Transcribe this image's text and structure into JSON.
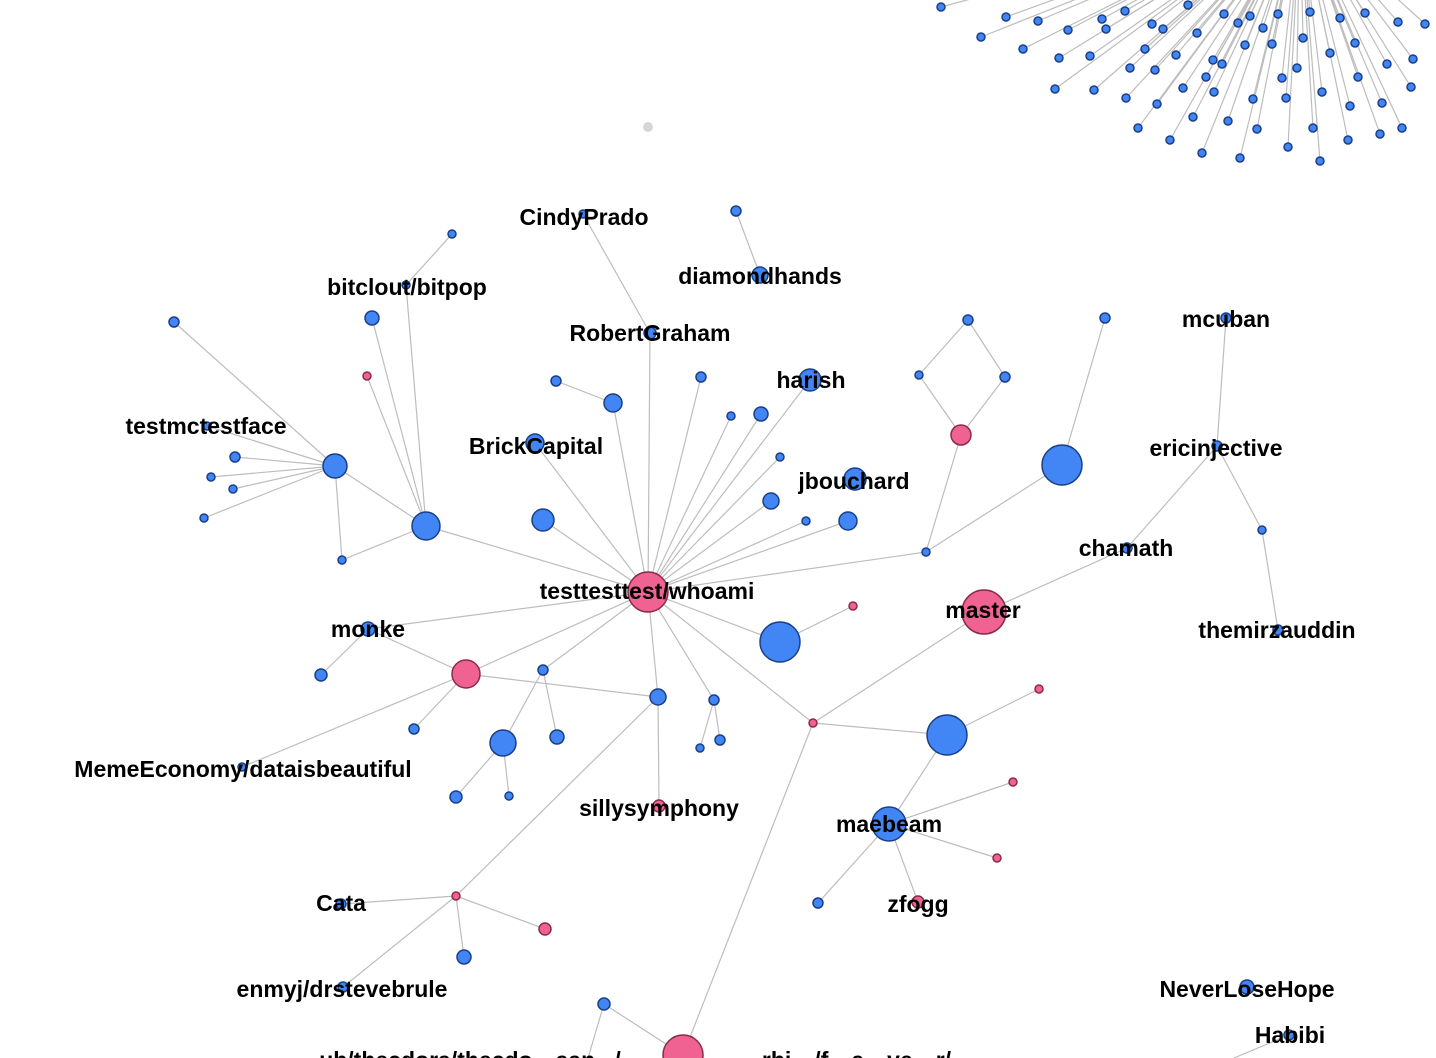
{
  "colors": {
    "blue_node": "#4285f4",
    "pink_node": "#f06292",
    "grey_node": "#d6d6d6",
    "edge": "#bdbdbd",
    "label": "#000000"
  },
  "labels": {
    "cindyprado": "CindyPrado",
    "diamondhands": "diamondhands",
    "bitclout_bitpop": "bitclout/bitpop",
    "robertgraham": "RobertGraham",
    "mcuban": "mcuban",
    "harish": "harish",
    "testmctestface": "testmctestface",
    "brickcapital": "BrickCapital",
    "ericinjective": "ericinjective",
    "jbouchard": "jbouchard",
    "chamath": "chamath",
    "testtesttest_whoami": "testtesttest/whoami",
    "master": "master",
    "monke": "monke",
    "themirzauddin": "themirzauddin",
    "memeeconomy_dataisbeautiful": "MemeEconomy/dataisbeautiful",
    "sillysymphony": "sillysymphony",
    "maebeam": "maebeam",
    "zfogg": "zfogg",
    "cata": "Cata",
    "enmyj_drstevebrule": "enmyj/drstevebrule",
    "neverlosehope": "NeverLoseHope",
    "habibi": "Habibi",
    "bottom_left_partial": "ub/thecdora/thecdo…aan.../",
    "bottom_mid_partial": "…rbi…/f…a…ve…r/"
  }
}
